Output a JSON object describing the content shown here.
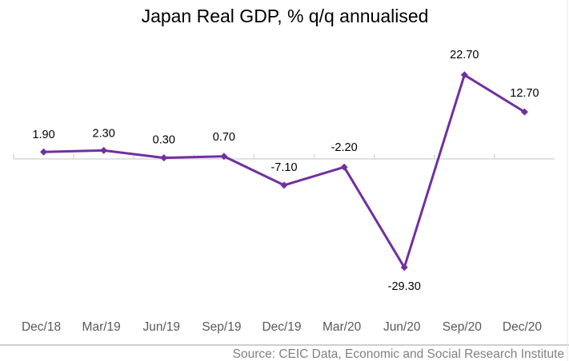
{
  "chart_data": {
    "type": "line",
    "title": "Japan Real GDP, % q/q annualised",
    "xlabel": "",
    "ylabel": "",
    "categories": [
      "Dec/18",
      "Mar/19",
      "Jun/19",
      "Sep/19",
      "Dec/19",
      "Mar/20",
      "Jun/20",
      "Sep/20",
      "Dec/20"
    ],
    "series": [
      {
        "name": "Japan Real GDP, % q/q annualised",
        "values": [
          1.9,
          2.3,
          0.3,
          0.7,
          -7.1,
          -2.2,
          -29.3,
          22.7,
          12.7
        ],
        "labels": [
          "1.90",
          "2.30",
          "0.30",
          "0.70",
          "-7.10",
          "-2.20",
          "-29.30",
          "22.70",
          "12.70"
        ],
        "color": "#7030A0",
        "marker": "diamond"
      }
    ],
    "ylim": [
      -35,
      30
    ],
    "grid": false,
    "legend": "none",
    "source": "Source: CEIC Data, Economic and Social Research Institute"
  },
  "colors": {
    "series": "#7030A0",
    "axis": "#d9d9d9",
    "tick_text": "#595959",
    "source_text": "#808080"
  }
}
